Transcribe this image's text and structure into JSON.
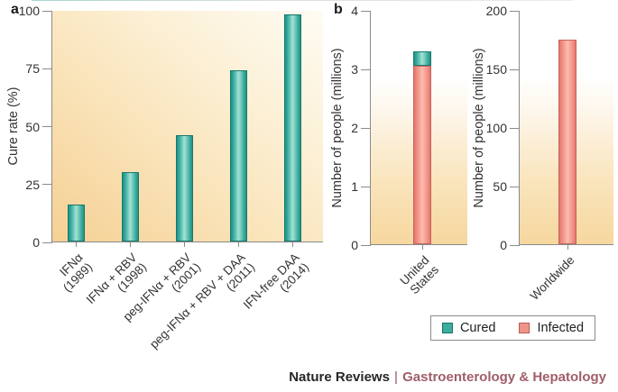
{
  "figure": {
    "panel_a_label": "a",
    "panel_b_label": "b"
  },
  "chart_data": [
    {
      "id": "cure-rate-by-therapy",
      "panel": "a",
      "type": "bar",
      "ylabel": "Cure rate (%)",
      "ylim": [
        0,
        100
      ],
      "yticks": [
        0,
        25,
        50,
        75,
        100
      ],
      "grid": false,
      "categories": [
        [
          "IFNα",
          "(1989)"
        ],
        [
          "IFNα + RBV",
          "(1998)"
        ],
        [
          "peg-IFNα + RBV",
          "(2001)"
        ],
        [
          "peg-IFNα + RBV + DAA",
          "(2011)"
        ],
        [
          "IFN-free DAA",
          "(2014)"
        ]
      ],
      "series": [
        {
          "name": "Cured",
          "color": "teal",
          "values": [
            16,
            30,
            46,
            74,
            98
          ]
        }
      ]
    },
    {
      "id": "people-united-states",
      "panel": "b",
      "type": "stacked-bar",
      "ylabel": "Number of people (millions)",
      "ylim": [
        0,
        4
      ],
      "yticks": [
        0,
        1,
        2,
        3,
        4
      ],
      "grid": false,
      "categories": [
        [
          "United",
          "States"
        ]
      ],
      "series": [
        {
          "name": "Infected",
          "color": "pink",
          "values": [
            3.05
          ]
        },
        {
          "name": "Cured",
          "color": "teal",
          "values": [
            0.25
          ]
        }
      ]
    },
    {
      "id": "people-worldwide",
      "panel": "b",
      "type": "bar",
      "ylabel": "Number of people (millions)",
      "ylim": [
        0,
        200
      ],
      "yticks": [
        0,
        50,
        100,
        150,
        200
      ],
      "grid": false,
      "categories": [
        [
          "Worldwide"
        ]
      ],
      "series": [
        {
          "name": "Infected",
          "color": "pink",
          "values": [
            175
          ]
        }
      ]
    }
  ],
  "legend": {
    "items": [
      {
        "label": "Cured",
        "color": "#3BAC9E",
        "border": "#1B766C"
      },
      {
        "label": "Infected",
        "color": "#F2938A",
        "border": "#B95B54"
      }
    ]
  },
  "footer": {
    "brand": "Nature Reviews",
    "separator": "|",
    "journal": "Gastroenterology & Hepatology"
  },
  "colors": {
    "bar_teal": "#2FA092",
    "bar_pink": "#F0938A",
    "axis_gray": "#8B8B8B",
    "text": "#333333",
    "plot_bg_orange": "#F6D59C",
    "journal_rose": "#A05E6A"
  }
}
